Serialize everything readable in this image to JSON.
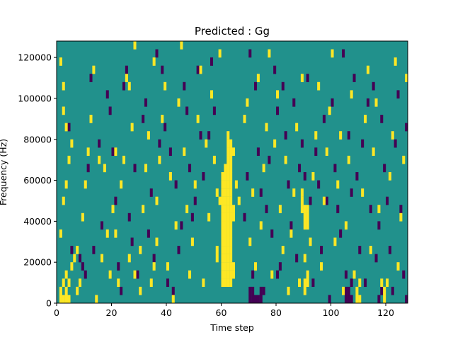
{
  "chart_data": {
    "type": "heatmap",
    "title": "Predicted : Gg",
    "xlabel": "Time step",
    "ylabel": "Frequency (Hz)",
    "xlim": [
      0,
      128
    ],
    "ylim": [
      0,
      128000
    ],
    "xticks": [
      0,
      20,
      40,
      60,
      80,
      100,
      120
    ],
    "yticks": [
      0,
      20000,
      40000,
      60000,
      80000,
      100000,
      120000
    ],
    "ytick_labels": [
      "0",
      "20000",
      "40000",
      "60000",
      "80000",
      "100000",
      "120000"
    ],
    "grid": false,
    "legend": "none",
    "n_time_steps": 128,
    "n_freq_bins": 32,
    "freq_bin_hz": 4000,
    "colormap": "viridis",
    "colors": {
      "background": "#21918c",
      "high": "#fde725",
      "low": "#440154"
    },
    "high_cells": [
      [
        1,
        0
      ],
      [
        2,
        0
      ],
      [
        3,
        0
      ],
      [
        4,
        0
      ],
      [
        1,
        1
      ],
      [
        3,
        1
      ],
      [
        2,
        2
      ],
      [
        4,
        2
      ],
      [
        3,
        3
      ],
      [
        5,
        4
      ],
      [
        6,
        5
      ],
      [
        1,
        29
      ],
      [
        2,
        26
      ],
      [
        2,
        23
      ],
      [
        3,
        21
      ],
      [
        5,
        19
      ],
      [
        4,
        17
      ],
      [
        3,
        14
      ],
      [
        2,
        12
      ],
      [
        1,
        8
      ],
      [
        7,
        1
      ],
      [
        8,
        2
      ],
      [
        7,
        6
      ],
      [
        9,
        10
      ],
      [
        10,
        14
      ],
      [
        11,
        18
      ],
      [
        12,
        22
      ],
      [
        13,
        28
      ],
      [
        14,
        0
      ],
      [
        16,
        5
      ],
      [
        18,
        8
      ],
      [
        17,
        16
      ],
      [
        15,
        17
      ],
      [
        19,
        3
      ],
      [
        20,
        11
      ],
      [
        21,
        18
      ],
      [
        21,
        8
      ],
      [
        22,
        2
      ],
      [
        23,
        14
      ],
      [
        24,
        17
      ],
      [
        25,
        27
      ],
      [
        26,
        5
      ],
      [
        26,
        26
      ],
      [
        27,
        21
      ],
      [
        28,
        3
      ],
      [
        28,
        31
      ],
      [
        30,
        1
      ],
      [
        30,
        6
      ],
      [
        31,
        11
      ],
      [
        32,
        16
      ],
      [
        33,
        20
      ],
      [
        34,
        2
      ],
      [
        35,
        4
      ],
      [
        35,
        29
      ],
      [
        36,
        7
      ],
      [
        36,
        12
      ],
      [
        37,
        17
      ],
      [
        38,
        22
      ],
      [
        39,
        26
      ],
      [
        40,
        4
      ],
      [
        41,
        15
      ],
      [
        42,
        0
      ],
      [
        43,
        9
      ],
      [
        44,
        24
      ],
      [
        45,
        31
      ],
      [
        46,
        18
      ],
      [
        47,
        11
      ],
      [
        48,
        3
      ],
      [
        49,
        7
      ],
      [
        50,
        14
      ],
      [
        51,
        22
      ],
      [
        52,
        28
      ],
      [
        53,
        2
      ],
      [
        54,
        19
      ],
      [
        55,
        10
      ],
      [
        56,
        25
      ],
      [
        57,
        17
      ],
      [
        58,
        6
      ],
      [
        59,
        30
      ],
      [
        58,
        13
      ],
      [
        59,
        12
      ],
      [
        58,
        5
      ],
      [
        60,
        2
      ],
      [
        60,
        3
      ],
      [
        60,
        4
      ],
      [
        60,
        5
      ],
      [
        60,
        6
      ],
      [
        60,
        7
      ],
      [
        60,
        8
      ],
      [
        60,
        9
      ],
      [
        60,
        10
      ],
      [
        60,
        11
      ],
      [
        60,
        12
      ],
      [
        60,
        13
      ],
      [
        60,
        14
      ],
      [
        60,
        15
      ],
      [
        61,
        2
      ],
      [
        61,
        3
      ],
      [
        61,
        4
      ],
      [
        61,
        5
      ],
      [
        61,
        6
      ],
      [
        61,
        7
      ],
      [
        61,
        8
      ],
      [
        61,
        9
      ],
      [
        61,
        10
      ],
      [
        61,
        11
      ],
      [
        61,
        12
      ],
      [
        61,
        13
      ],
      [
        61,
        14
      ],
      [
        61,
        15
      ],
      [
        61,
        16
      ],
      [
        62,
        2
      ],
      [
        62,
        3
      ],
      [
        62,
        4
      ],
      [
        62,
        5
      ],
      [
        62,
        6
      ],
      [
        62,
        7
      ],
      [
        62,
        8
      ],
      [
        62,
        9
      ],
      [
        62,
        10
      ],
      [
        62,
        11
      ],
      [
        62,
        12
      ],
      [
        62,
        13
      ],
      [
        62,
        14
      ],
      [
        62,
        15
      ],
      [
        62,
        16
      ],
      [
        62,
        17
      ],
      [
        62,
        18
      ],
      [
        62,
        19
      ],
      [
        62,
        20
      ],
      [
        63,
        2
      ],
      [
        63,
        3
      ],
      [
        63,
        4
      ],
      [
        63,
        5
      ],
      [
        63,
        6
      ],
      [
        63,
        7
      ],
      [
        63,
        8
      ],
      [
        63,
        9
      ],
      [
        63,
        10
      ],
      [
        63,
        11
      ],
      [
        63,
        12
      ],
      [
        63,
        13
      ],
      [
        63,
        14
      ],
      [
        63,
        15
      ],
      [
        63,
        16
      ],
      [
        63,
        17
      ],
      [
        64,
        3
      ],
      [
        64,
        4
      ],
      [
        64,
        10
      ],
      [
        64,
        11
      ],
      [
        63,
        18
      ],
      [
        63,
        19
      ],
      [
        64,
        18
      ],
      [
        65,
        14
      ],
      [
        66,
        12
      ],
      [
        68,
        22
      ],
      [
        69,
        24
      ],
      [
        70,
        7
      ],
      [
        71,
        13
      ],
      [
        72,
        4
      ],
      [
        73,
        27
      ],
      [
        74,
        9
      ],
      [
        75,
        16
      ],
      [
        76,
        21
      ],
      [
        77,
        30
      ],
      [
        78,
        3
      ],
      [
        79,
        19
      ],
      [
        80,
        25
      ],
      [
        81,
        11
      ],
      [
        82,
        6
      ],
      [
        83,
        17
      ],
      [
        84,
        1
      ],
      [
        85,
        8
      ],
      [
        86,
        13
      ],
      [
        87,
        21
      ],
      [
        88,
        2
      ],
      [
        89,
        27
      ],
      [
        90,
        5
      ],
      [
        89,
        11
      ],
      [
        89,
        12
      ],
      [
        89,
        13
      ],
      [
        90,
        9
      ],
      [
        90,
        10
      ],
      [
        90,
        11
      ],
      [
        91,
        9
      ],
      [
        91,
        10
      ],
      [
        91,
        11
      ],
      [
        90,
        1
      ],
      [
        90,
        2
      ],
      [
        91,
        2
      ],
      [
        91,
        3
      ],
      [
        92,
        7
      ],
      [
        93,
        15
      ],
      [
        94,
        20
      ],
      [
        95,
        26
      ],
      [
        96,
        4
      ],
      [
        97,
        12
      ],
      [
        98,
        18
      ],
      [
        99,
        23
      ],
      [
        100,
        30
      ],
      [
        101,
        7
      ],
      [
        102,
        14
      ],
      [
        103,
        20
      ],
      [
        104,
        1
      ],
      [
        105,
        9
      ],
      [
        106,
        17
      ],
      [
        107,
        25
      ],
      [
        108,
        3
      ],
      [
        109,
        0
      ],
      [
        109,
        1
      ],
      [
        110,
        0
      ],
      [
        110,
        2
      ],
      [
        111,
        13
      ],
      [
        112,
        22
      ],
      [
        113,
        28
      ],
      [
        114,
        6
      ],
      [
        115,
        18
      ],
      [
        116,
        24
      ],
      [
        117,
        11
      ],
      [
        118,
        2
      ],
      [
        119,
        0
      ],
      [
        119,
        1
      ],
      [
        120,
        2
      ],
      [
        121,
        15
      ],
      [
        122,
        20
      ],
      [
        123,
        29
      ],
      [
        124,
        4
      ],
      [
        125,
        10
      ],
      [
        126,
        17
      ],
      [
        127,
        27
      ]
    ],
    "low_cells": [
      [
        4,
        21
      ],
      [
        5,
        6
      ],
      [
        8,
        5
      ],
      [
        9,
        4
      ],
      [
        10,
        3
      ],
      [
        11,
        16
      ],
      [
        12,
        27
      ],
      [
        13,
        6
      ],
      [
        15,
        19
      ],
      [
        16,
        9
      ],
      [
        18,
        25
      ],
      [
        19,
        23
      ],
      [
        20,
        18
      ],
      [
        21,
        12
      ],
      [
        22,
        4
      ],
      [
        23,
        1
      ],
      [
        24,
        26
      ],
      [
        25,
        28
      ],
      [
        26,
        10
      ],
      [
        27,
        7
      ],
      [
        28,
        16
      ],
      [
        29,
        3
      ],
      [
        31,
        22
      ],
      [
        32,
        24
      ],
      [
        33,
        8
      ],
      [
        34,
        13
      ],
      [
        35,
        5
      ],
      [
        36,
        30
      ],
      [
        37,
        19
      ],
      [
        38,
        28
      ],
      [
        39,
        21
      ],
      [
        40,
        2
      ],
      [
        41,
        18
      ],
      [
        42,
        1
      ],
      [
        43,
        14
      ],
      [
        44,
        6
      ],
      [
        45,
        9
      ],
      [
        46,
        26
      ],
      [
        47,
        23
      ],
      [
        48,
        16
      ],
      [
        49,
        10
      ],
      [
        50,
        12
      ],
      [
        51,
        28
      ],
      [
        52,
        20
      ],
      [
        53,
        15
      ],
      [
        55,
        20
      ],
      [
        56,
        29
      ],
      [
        57,
        23
      ],
      [
        68,
        10
      ],
      [
        69,
        15
      ],
      [
        70,
        30
      ],
      [
        71,
        3
      ],
      [
        72,
        26
      ],
      [
        73,
        18
      ],
      [
        74,
        13
      ],
      [
        75,
        1
      ],
      [
        76,
        11
      ],
      [
        77,
        17
      ],
      [
        78,
        8
      ],
      [
        79,
        28
      ],
      [
        80,
        3
      ],
      [
        80,
        23
      ],
      [
        81,
        4
      ],
      [
        82,
        26
      ],
      [
        83,
        20
      ],
      [
        84,
        14
      ],
      [
        85,
        9
      ],
      [
        86,
        24
      ],
      [
        87,
        5
      ],
      [
        88,
        16
      ],
      [
        89,
        19
      ],
      [
        90,
        15
      ],
      [
        91,
        27
      ],
      [
        92,
        12
      ],
      [
        93,
        2
      ],
      [
        94,
        18
      ],
      [
        95,
        14
      ],
      [
        96,
        6
      ],
      [
        97,
        22
      ],
      [
        98,
        12
      ],
      [
        99,
        0
      ],
      [
        100,
        24
      ],
      [
        101,
        16
      ],
      [
        102,
        11
      ],
      [
        103,
        8
      ],
      [
        104,
        30
      ],
      [
        105,
        3
      ],
      [
        106,
        20
      ],
      [
        107,
        13
      ],
      [
        108,
        27
      ],
      [
        109,
        15
      ],
      [
        110,
        6
      ],
      [
        111,
        19
      ],
      [
        112,
        2
      ],
      [
        113,
        24
      ],
      [
        114,
        11
      ],
      [
        115,
        26
      ],
      [
        116,
        5
      ],
      [
        117,
        9
      ],
      [
        118,
        22
      ],
      [
        119,
        16
      ],
      [
        120,
        12
      ],
      [
        121,
        6
      ],
      [
        122,
        1
      ],
      [
        123,
        19
      ],
      [
        124,
        25
      ],
      [
        125,
        11
      ],
      [
        126,
        3
      ],
      [
        127,
        21
      ],
      [
        70,
        0
      ],
      [
        70,
        1
      ],
      [
        71,
        0
      ],
      [
        71,
        1
      ],
      [
        72,
        0
      ],
      [
        73,
        0
      ],
      [
        74,
        0
      ],
      [
        74,
        1
      ],
      [
        105,
        0
      ],
      [
        105,
        1
      ],
      [
        106,
        0
      ],
      [
        106,
        1
      ],
      [
        107,
        0
      ],
      [
        107,
        2
      ],
      [
        117,
        0
      ],
      [
        118,
        1
      ],
      [
        127,
        0
      ]
    ]
  }
}
